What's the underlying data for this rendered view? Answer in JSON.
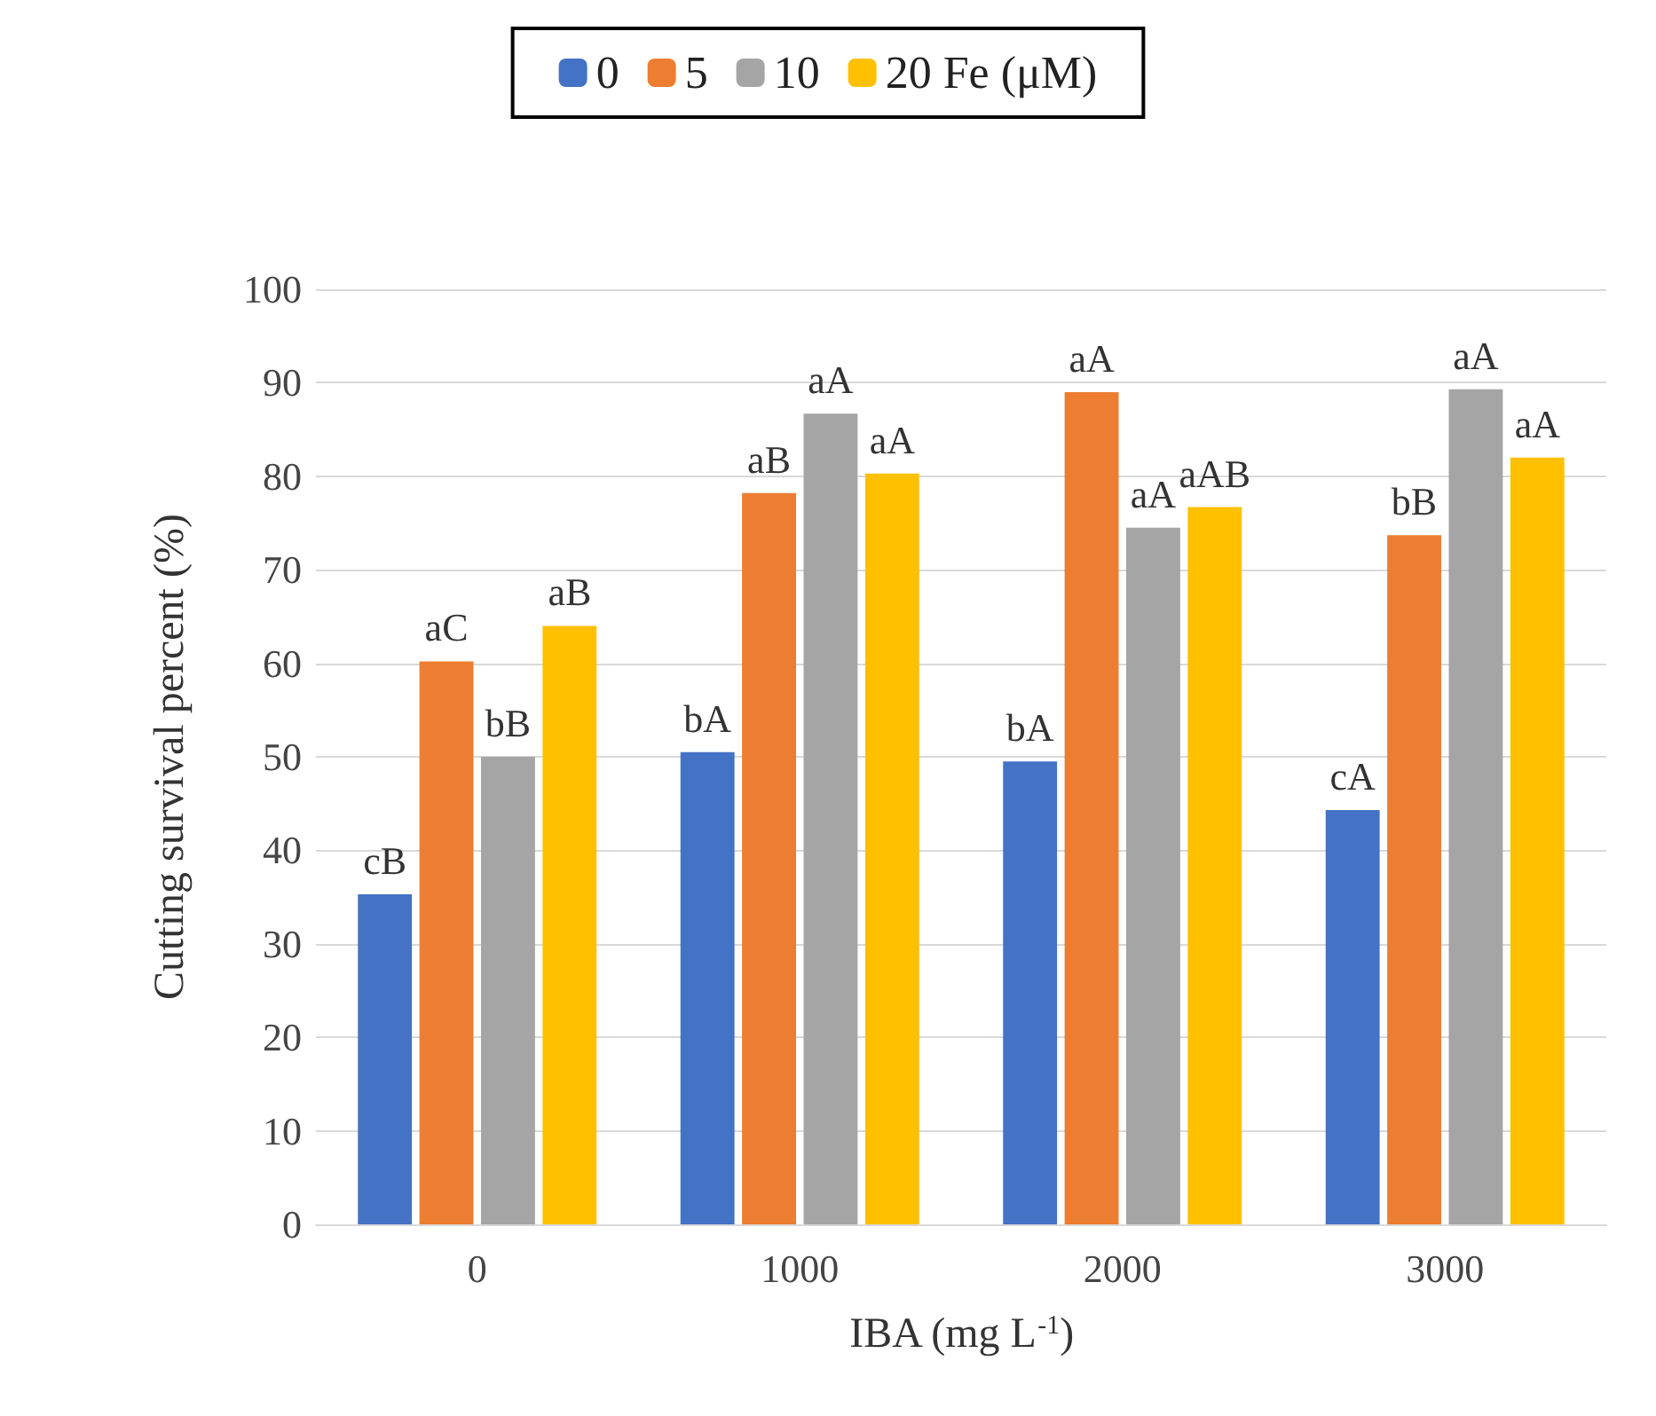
{
  "chart_data": {
    "type": "bar",
    "xlabel": "IBA (mg L$^{-1}$)",
    "ylabel": "Cutting survival percent (%)",
    "categories": [
      "0",
      "1000",
      "2000",
      "3000"
    ],
    "series": [
      {
        "name": "0",
        "color": "#4472c4",
        "values": [
          35.3,
          50.5,
          49.5,
          44.3
        ],
        "value_labels": [
          "cB",
          "bA",
          "bA",
          "cA"
        ]
      },
      {
        "name": "5",
        "color": "#ed7d31",
        "values": [
          60.2,
          78.2,
          89,
          73.7
        ],
        "value_labels": [
          "aC",
          "aB",
          "aA",
          "bB"
        ]
      },
      {
        "name": "10",
        "color": "#a5a5a5",
        "values": [
          50,
          86.7,
          74.5,
          89.3
        ],
        "value_labels": [
          "bB",
          "aA",
          "aA",
          "aA"
        ]
      },
      {
        "name": "20 Fe (μM)",
        "color": "#ffc000",
        "values": [
          64,
          80.3,
          76.7,
          82
        ],
        "value_labels": [
          "aB",
          "aA",
          "aAB",
          "aA"
        ]
      }
    ],
    "ylim": [
      0,
      100
    ],
    "yticks": [
      0,
      10,
      20,
      30,
      40,
      50,
      60,
      70,
      80,
      90,
      100
    ],
    "grid": "y",
    "legend": "top"
  }
}
